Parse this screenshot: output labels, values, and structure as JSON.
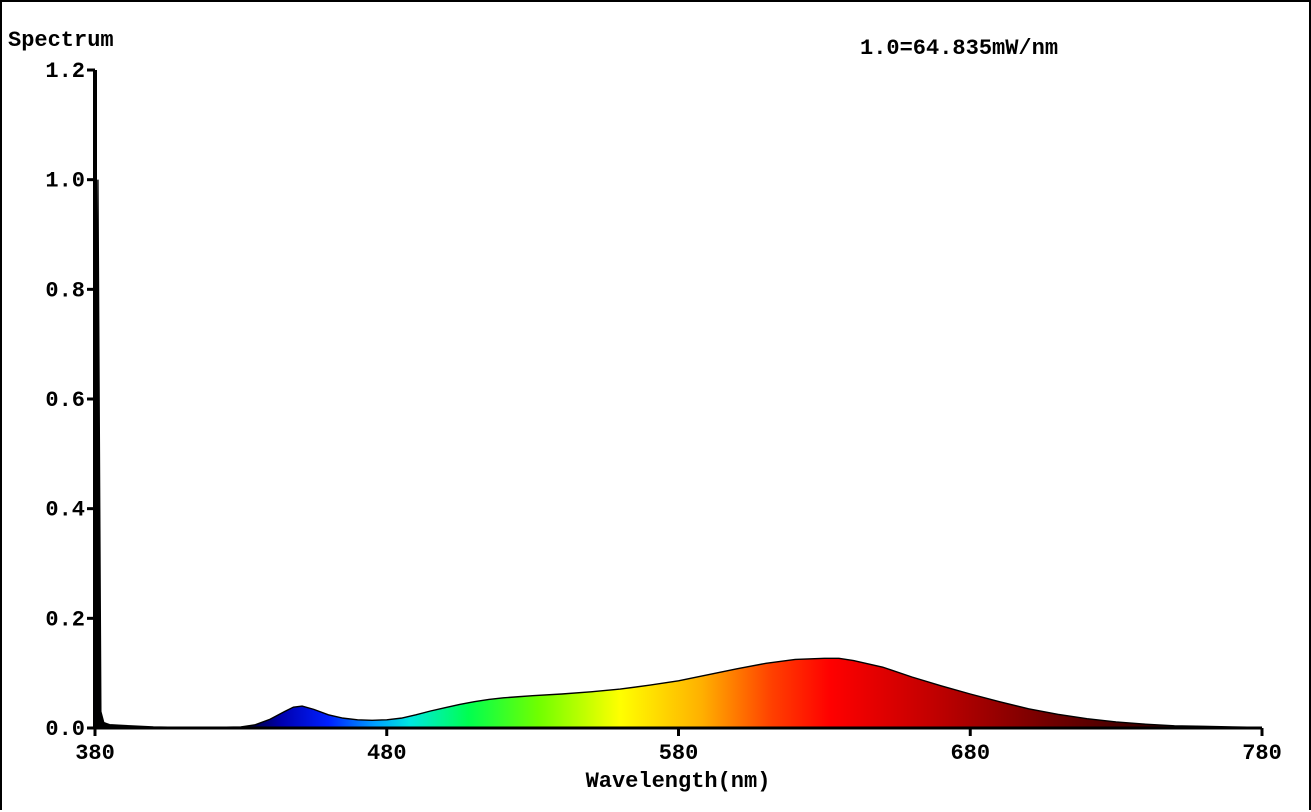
{
  "chart_data": {
    "type": "area",
    "title": "Spectrum",
    "annotation": "1.0=64.835mW/nm",
    "xlabel": "Wavelength(nm)",
    "ylabel": "",
    "xlim": [
      380,
      780
    ],
    "ylim": [
      0,
      1.2
    ],
    "x_ticks": [
      380,
      480,
      580,
      680,
      780
    ],
    "x_tick_labels": [
      "380",
      "480",
      "580",
      "680",
      "780"
    ],
    "y_ticks": [
      0,
      0.2,
      0.4,
      0.6,
      0.8,
      1.0,
      1.2
    ],
    "y_tick_labels": [
      "0.0",
      "0.2",
      "0.4",
      "0.6",
      "0.8",
      "1.0",
      "1.2"
    ],
    "grid": false,
    "legend": "none",
    "fill": "visible-spectrum gradient",
    "series": [
      {
        "x": [
          380,
          381,
          382,
          383,
          384,
          385,
          388,
          392,
          400,
          410,
          420,
          430,
          435,
          440,
          445,
          448,
          451,
          455,
          460,
          465,
          470,
          475,
          480,
          485,
          490,
          495,
          500,
          505,
          510,
          515,
          520,
          525,
          530,
          540,
          550,
          560,
          570,
          580,
          590,
          600,
          610,
          620,
          630,
          635,
          640,
          650,
          660,
          670,
          680,
          690,
          700,
          710,
          720,
          730,
          740,
          750,
          760,
          770,
          780
        ],
        "values": [
          0.0,
          1.0,
          0.03,
          0.01,
          0.008,
          0.006,
          0.005,
          0.004,
          0.002,
          0.001,
          0.001,
          0.002,
          0.006,
          0.016,
          0.03,
          0.038,
          0.04,
          0.034,
          0.024,
          0.018,
          0.015,
          0.014,
          0.015,
          0.018,
          0.024,
          0.031,
          0.037,
          0.043,
          0.048,
          0.052,
          0.055,
          0.057,
          0.059,
          0.062,
          0.066,
          0.071,
          0.078,
          0.086,
          0.097,
          0.108,
          0.118,
          0.125,
          0.127,
          0.127,
          0.123,
          0.111,
          0.093,
          0.077,
          0.062,
          0.048,
          0.035,
          0.025,
          0.017,
          0.011,
          0.007,
          0.004,
          0.003,
          0.002,
          0.001
        ]
      }
    ]
  }
}
